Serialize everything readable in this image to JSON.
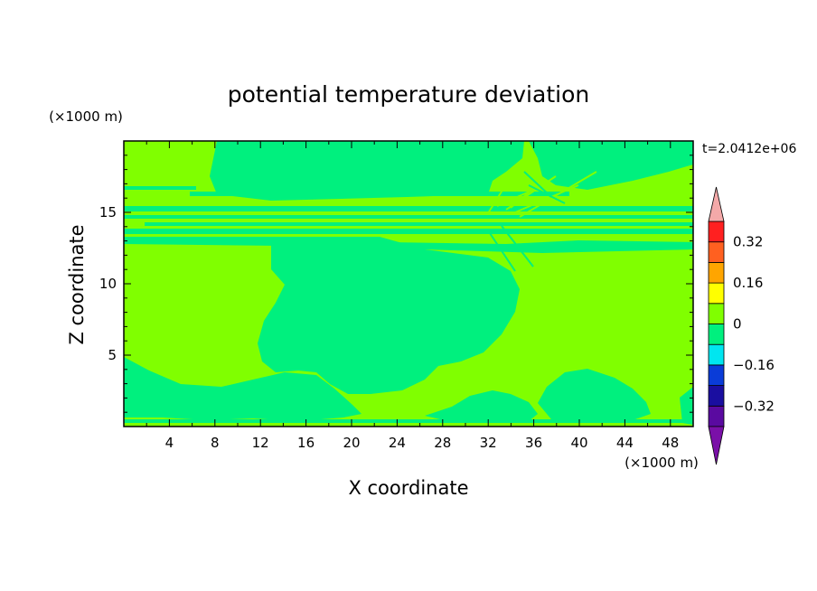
{
  "chart_data": {
    "type": "heatmap",
    "title": "potential temperature deviation",
    "xlabel": "X coordinate",
    "ylabel": "Z coordinate",
    "x_unit": "(×1000 m)",
    "y_unit": "(×1000 m)",
    "time_label": "t=2.0412e+06",
    "xlim": [
      0,
      50
    ],
    "ylim": [
      0,
      20
    ],
    "x_ticks": [
      4,
      8,
      12,
      16,
      20,
      24,
      28,
      32,
      36,
      40,
      44,
      48
    ],
    "y_ticks": [
      5,
      10,
      15
    ],
    "colorbar": {
      "levels": [
        -0.4,
        -0.32,
        -0.24,
        -0.16,
        -0.08,
        0,
        0.08,
        0.16,
        0.24,
        0.32,
        0.4
      ],
      "labels": [
        "0.32",
        "0.16",
        "0",
        "-0.16",
        "-0.32"
      ],
      "label_values": [
        0.32,
        0.16,
        0,
        -0.16,
        -0.32
      ],
      "colors": [
        "#5a0aa0",
        "#1a0ea0",
        "#0a3cd8",
        "#00e6f0",
        "#00f07e",
        "#80ff00",
        "#ffff00",
        "#ffa500",
        "#ff6020",
        "#ff2020"
      ],
      "over_color": "#f4a9a9",
      "under_color": "#7a10a8",
      "extend": "both"
    },
    "field_note": "",
    "dominant_values": {
      "band_0_to_0.08": "#80ff00",
      "band_-0.08_to_0": "#00f07e"
    }
  }
}
